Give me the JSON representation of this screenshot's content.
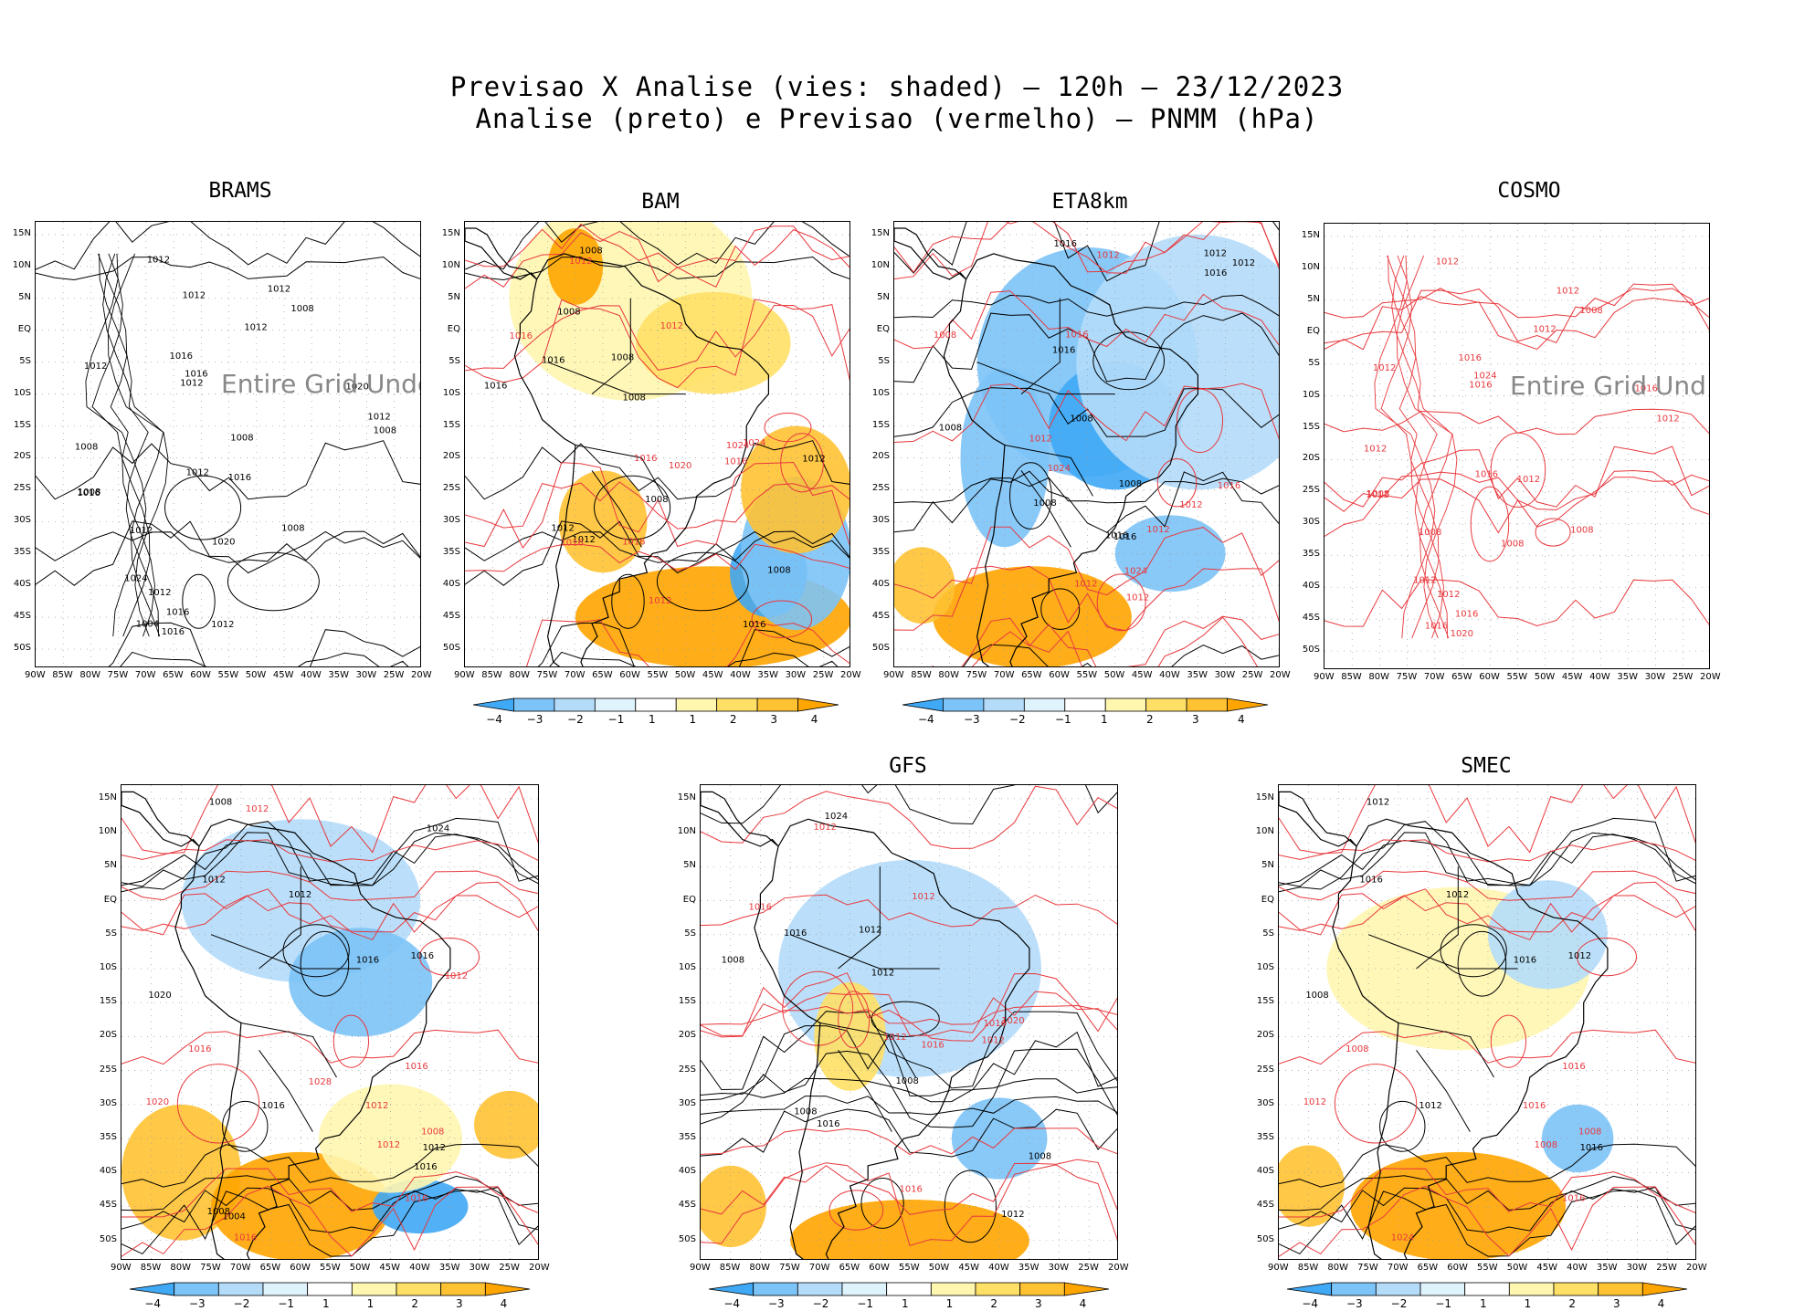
{
  "figure": {
    "title_line1": "Previsao X Analise (vies: shaded) – 120h – 23/12/2023",
    "title_line2": "Analise (preto) e Previsao (vermelho) – PNMM (hPa)"
  },
  "axes": {
    "lat_ticks": [
      "15N",
      "10N",
      "5N",
      "EQ",
      "5S",
      "10S",
      "15S",
      "20S",
      "25S",
      "30S",
      "35S",
      "40S",
      "45S",
      "50S"
    ],
    "lon_ticks": [
      "90W",
      "85W",
      "80W",
      "75W",
      "70W",
      "65W",
      "60W",
      "55W",
      "50W",
      "45W",
      "40W",
      "35W",
      "30W",
      "25W",
      "20W"
    ]
  },
  "colorbar": {
    "labels": [
      "−4",
      "−3",
      "−2",
      "−1",
      "1",
      "1",
      "2",
      "3",
      "4"
    ],
    "labels_eta": [
      "−4",
      "−3",
      "−2",
      "−1",
      "1",
      "2",
      "3",
      "4"
    ],
    "colors": [
      "#3fa9f5",
      "#7cc3f7",
      "#b4dcf9",
      "#dff3fd",
      "#ffffff",
      "#fff6b0",
      "#ffe066",
      "#ffc233",
      "#ffa500"
    ]
  },
  "colors": {
    "analysis": "#000000",
    "forecast": "#e8383d",
    "land_outline": "#000000"
  },
  "panels": [
    {
      "id": "brams",
      "title": "BRAMS",
      "undefined_text": "Entire Grid Undef",
      "has_colorbar": false,
      "labels": [
        "1012",
        "1012",
        "1012",
        "1008",
        "1008",
        "1008",
        "1012",
        "1012",
        "1016",
        "1016",
        "1012",
        "1012",
        "1004",
        "1008",
        "1020",
        "1016",
        "1024",
        "1020",
        "1016",
        "1012",
        "1016",
        "1016",
        "1012",
        "1008",
        "1012",
        "1012",
        "1008"
      ]
    },
    {
      "id": "bam",
      "title": "BAM",
      "has_colorbar": true,
      "labels": [
        "1016",
        "1016",
        "1008",
        "1012",
        "1012",
        "1012",
        "1016",
        "1020",
        "1008",
        "1016",
        "1008",
        "1024",
        "1016",
        "1024",
        "1008",
        "1012",
        "1008",
        "1016",
        "1012",
        "1016",
        "1012",
        "1016",
        "1008"
      ]
    },
    {
      "id": "eta8km",
      "title": "ETA8km",
      "has_colorbar": true,
      "labels": [
        "1012",
        "1008",
        "1016",
        "1016",
        "1012",
        "1012",
        "1008",
        "1012",
        "1008",
        "1016",
        "1016",
        "1012",
        "1008",
        "1024",
        "1016",
        "1012",
        "1008",
        "1012",
        "1016",
        "1012",
        "1016",
        "1024"
      ]
    },
    {
      "id": "cosmo",
      "title": "COSMO",
      "undefined_text": "Entire Grid Und",
      "has_colorbar": false,
      "labels": [
        "1012",
        "1016",
        "1012",
        "1012",
        "1008",
        "1008",
        "1012",
        "1012",
        "1016",
        "1012",
        "1016",
        "1012",
        "1016",
        "1008",
        "1016",
        "1012",
        "1012",
        "1008",
        "1020",
        "1012",
        "1024",
        "1016",
        "1008"
      ]
    },
    {
      "id": "smna",
      "title": "",
      "has_colorbar": true,
      "labels": [
        "1012",
        "1016",
        "1016",
        "1012",
        "1012",
        "1012",
        "1012",
        "1016",
        "1016",
        "1016",
        "1016",
        "1020",
        "1020",
        "1016",
        "1008",
        "1008",
        "1024",
        "1028",
        "1016",
        "1012",
        "1008",
        "1012",
        "1004"
      ]
    },
    {
      "id": "gfs",
      "title": "GFS",
      "has_colorbar": true,
      "labels": [
        "1016",
        "1016",
        "1012",
        "1012",
        "1016",
        "1012",
        "1008",
        "1016",
        "1008",
        "1012",
        "1024",
        "1016",
        "1012",
        "1020",
        "1008",
        "1016",
        "1012",
        "1012",
        "1008"
      ]
    },
    {
      "id": "smec",
      "title": "SMEC",
      "has_colorbar": true,
      "labels": [
        "1012",
        "1016",
        "1012",
        "1008",
        "1016",
        "1016",
        "1016",
        "1024",
        "1016",
        "1008",
        "1012",
        "1012",
        "1008",
        "1016",
        "1012",
        "1008"
      ]
    }
  ]
}
